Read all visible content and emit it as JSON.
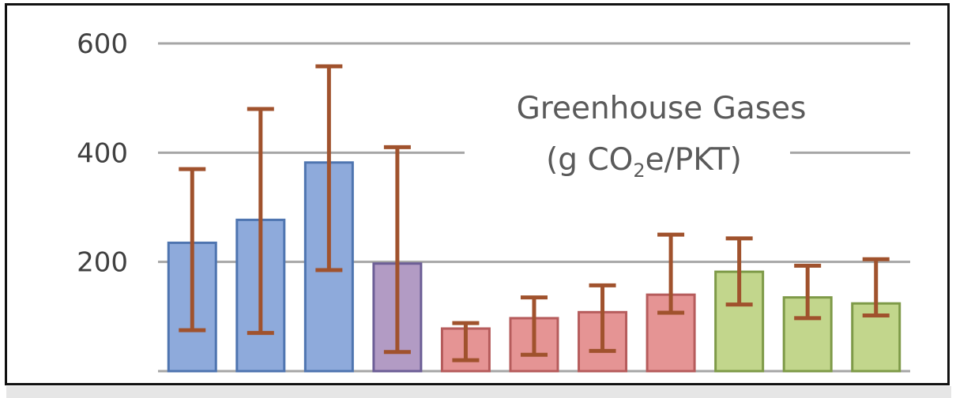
{
  "chart_data": {
    "type": "bar",
    "title_line1": "Greenhouse Gases",
    "title_line2_pre": "(g CO",
    "title_line2_sub": "2",
    "title_line2_post": "e/PKT)",
    "xlabel": "",
    "ylabel": "",
    "ylim": [
      0,
      600
    ],
    "yticks": [
      200,
      400,
      600
    ],
    "grid": true,
    "values": [
      235,
      277,
      382,
      197,
      78,
      97,
      108,
      140,
      182,
      135,
      124
    ],
    "err_low": [
      75,
      70,
      185,
      35,
      20,
      30,
      37,
      107,
      122,
      97,
      102
    ],
    "err_high": [
      370,
      480,
      558,
      410,
      88,
      135,
      157,
      250,
      243,
      193,
      205
    ],
    "colors": [
      "#8eaadb",
      "#8eaadb",
      "#8eaadb",
      "#b29bc4",
      "#e59494",
      "#e59494",
      "#e59494",
      "#e59494",
      "#c2d68c",
      "#c2d68c",
      "#c2d68c"
    ],
    "border_colors": [
      "#4f75b0",
      "#4f75b0",
      "#4f75b0",
      "#6c5e96",
      "#b65c5c",
      "#b65c5c",
      "#b65c5c",
      "#b65c5c",
      "#7e9a48",
      "#7e9a48",
      "#7e9a48"
    ],
    "error_bar_color": "#a0522d",
    "grid_color": "#a6a6a6"
  }
}
